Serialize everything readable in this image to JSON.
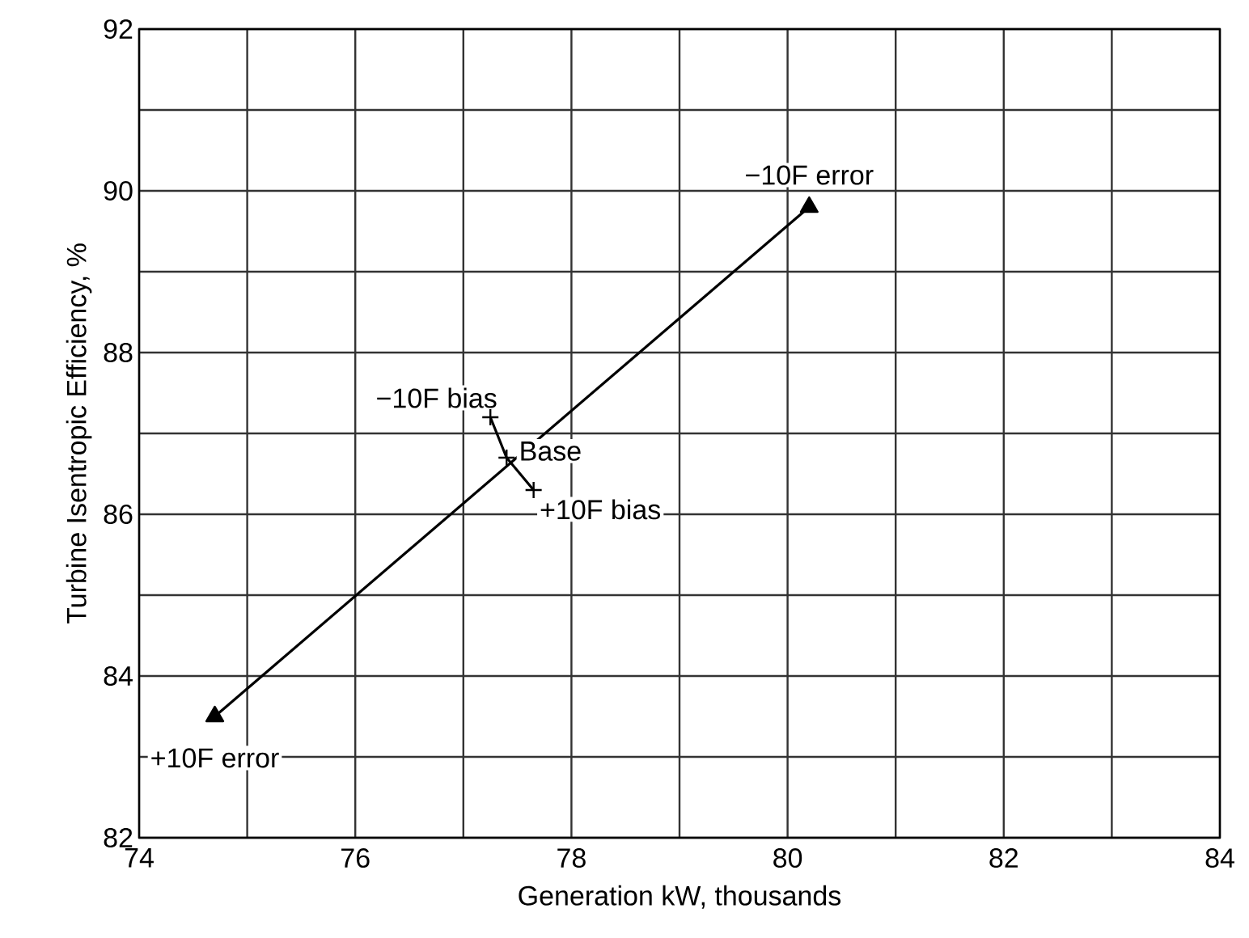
{
  "chart_data": {
    "type": "line",
    "xlabel": "Generation kW, thousands",
    "ylabel": "Turbine Isentropic Efficiency, %",
    "xlim": [
      74,
      84
    ],
    "ylim": [
      82,
      92
    ],
    "xticks": [
      74,
      {
        "value": 75,
        "label": null
      },
      76,
      {
        "value": 77,
        "label": null
      },
      78,
      {
        "value": 79,
        "label": null
      },
      80,
      {
        "value": 81,
        "label": null
      },
      82,
      {
        "value": 83,
        "label": null
      },
      84
    ],
    "yticks": [
      82,
      {
        "value": 83,
        "label": null
      },
      84,
      {
        "value": 85,
        "label": null
      },
      86,
      {
        "value": 87,
        "label": null
      },
      88,
      {
        "value": 89,
        "label": null
      },
      90,
      {
        "value": 91,
        "label": null
      },
      92
    ],
    "grid": true,
    "line_style": "solid",
    "series": [
      {
        "color": "#000000",
        "marker": "triangle",
        "x": [
          74.7,
          80.2
        ],
        "values": [
          83.5,
          89.8
        ]
      },
      {
        "color": "#000000",
        "marker": "cross",
        "x": [
          77.25,
          77.4,
          77.65
        ],
        "values": [
          87.2,
          86.7,
          86.3
        ]
      }
    ],
    "annotations": [
      {
        "text": "−10F error",
        "x": 80.2,
        "y": 89.8
      },
      {
        "text": "+10F error",
        "x": 74.7,
        "y": 83.5
      },
      {
        "text": "−10F bias",
        "x": 77.25,
        "y": 87.2
      },
      {
        "text": "Base",
        "x": 77.4,
        "y": 86.7
      },
      {
        "text": "+10F bias",
        "x": 77.65,
        "y": 86.3
      }
    ]
  }
}
